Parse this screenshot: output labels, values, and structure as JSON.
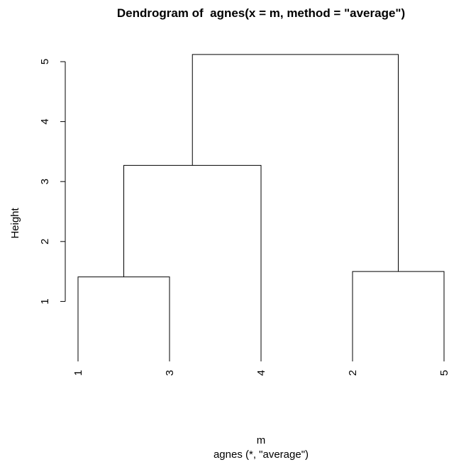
{
  "chart_data": {
    "type": "dendrogram",
    "title": "Dendrogram of  agnes(x = m, method = \"average\")",
    "ylabel": "Height",
    "xlabel": "m",
    "sub": "agnes (*, \"average\")",
    "yticks": [
      1,
      2,
      3,
      4,
      5
    ],
    "ylim": [
      0,
      5.12
    ],
    "leaf_order": [
      "1",
      "3",
      "4",
      "2",
      "5"
    ],
    "merges": [
      {
        "left": "1",
        "right": "3",
        "height": 1.41
      },
      {
        "left": "2",
        "right": "5",
        "height": 1.5
      },
      {
        "left": "1+3",
        "right": "4",
        "height": 3.27
      },
      {
        "left": "1+3+4",
        "right": "2+5",
        "height": 5.12
      }
    ]
  }
}
